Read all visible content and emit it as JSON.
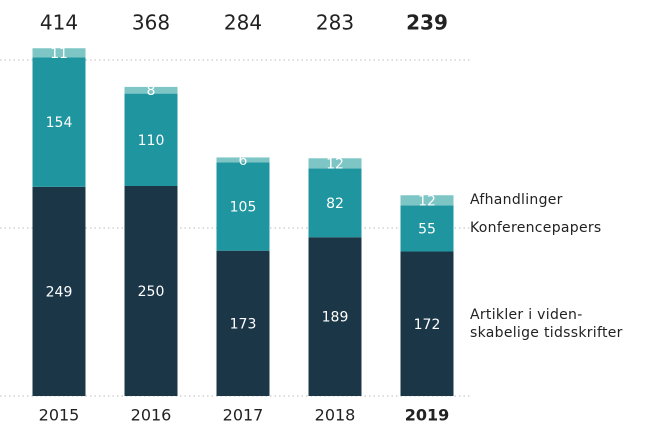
{
  "chart_data": {
    "type": "stacked_bar",
    "categories": [
      "2015",
      "2016",
      "2017",
      "2018",
      "2019"
    ],
    "totals": [
      414,
      368,
      284,
      283,
      239
    ],
    "highlight": "2019",
    "series": [
      {
        "name": "Artikler i viden-skabelige tidsskrifter",
        "color": "#1b3747",
        "values": [
          249,
          250,
          173,
          189,
          172
        ]
      },
      {
        "name": "Konferencepapers",
        "color": "#1e959f",
        "values": [
          154,
          110,
          105,
          82,
          55
        ]
      },
      {
        "name": "Afhandlinger",
        "color": "#7ec6c6",
        "values": [
          11,
          8,
          6,
          12,
          12
        ]
      }
    ],
    "ylim": [
      0,
      450
    ],
    "yticks": [
      0,
      200,
      400
    ],
    "grid": true
  }
}
